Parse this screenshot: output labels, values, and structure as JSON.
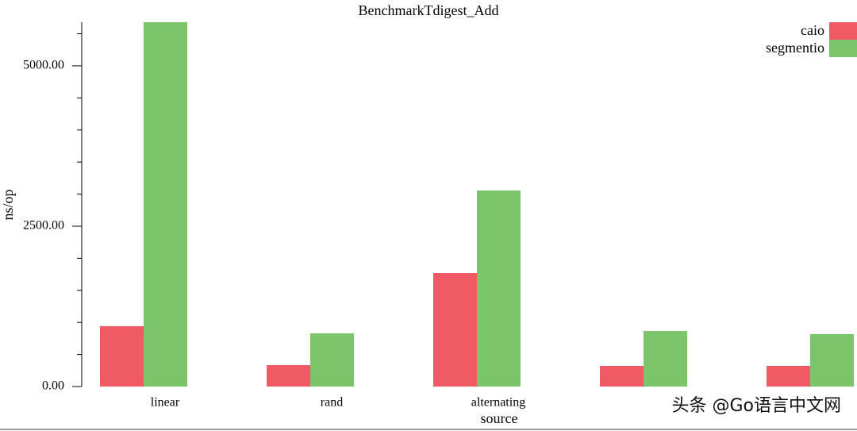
{
  "chart_data": {
    "type": "bar",
    "title": "BenchmarkTdigest_Add",
    "x_label": "source",
    "y_label": "ns/op",
    "categories": [
      "linear",
      "rand",
      "alternating",
      null,
      null
    ],
    "series": [
      {
        "name": "caio",
        "color": "#f05a64",
        "values": [
          941,
          334,
          1770,
          322,
          322
        ]
      },
      {
        "name": "segmentio",
        "color": "#7bc46a",
        "values": [
          5680,
          829,
          3057,
          866,
          817
        ]
      }
    ],
    "ylim": [
      0,
      5680
    ],
    "yticks": [
      {
        "value": 0,
        "label": "0.00"
      },
      {
        "value": 2500,
        "label": "2500.00"
      },
      {
        "value": 5000,
        "label": "5000.00"
      }
    ],
    "minor_yticks": [
      500,
      1000,
      1500,
      2000,
      3000,
      3500,
      4000,
      4500,
      5500
    ],
    "legend": "top-right",
    "watermark": "头条 @Go语言中文网"
  }
}
